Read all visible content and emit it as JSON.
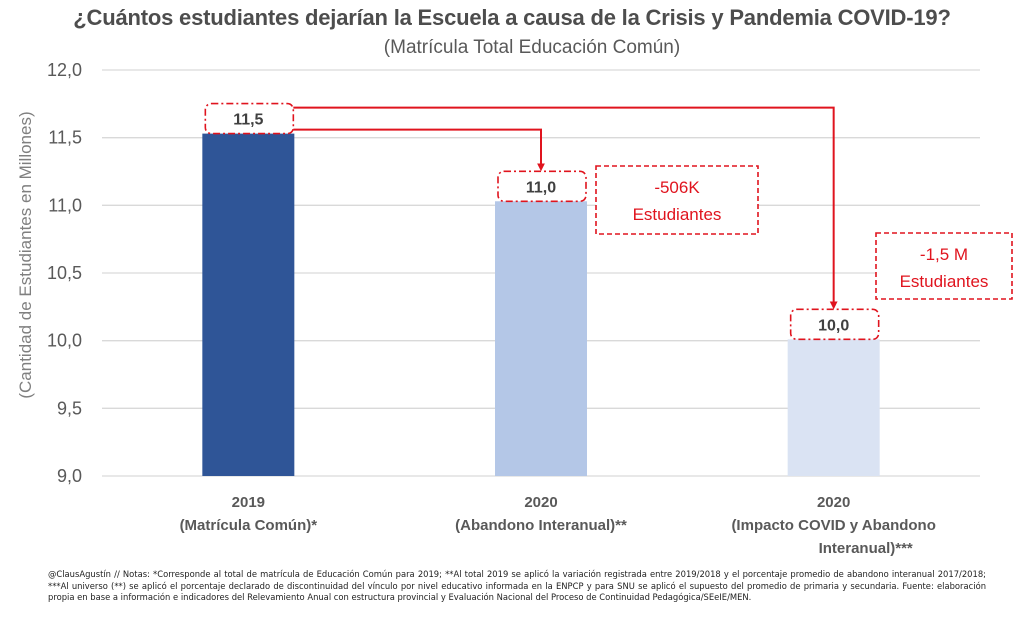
{
  "chart_data": {
    "type": "bar",
    "title": "¿Cuántos estudiantes dejarían la Escuela a causa de la Crisis y Pandemia COVID-19?",
    "subtitle": "(Matrícula Total Educación Común)",
    "ylabel": "(Cantidad de Estudiantes en Millones)",
    "xlabel": "",
    "ylim": [
      9.0,
      12.0
    ],
    "yticks": [
      9.0,
      9.5,
      10.0,
      10.5,
      11.0,
      11.5,
      12.0
    ],
    "ytick_labels": [
      "9,0",
      "9,5",
      "10,0",
      "10,5",
      "11,0",
      "11,5",
      "12,0"
    ],
    "grid": true,
    "categories": [
      {
        "line1": "2019",
        "line2": "(Matrícula Común)*",
        "line3": ""
      },
      {
        "line1": "2020",
        "line2": "(Abandono Interanual)**",
        "line3": ""
      },
      {
        "line1": "2020",
        "line2": "(Impacto COVID y Abandono",
        "line3": "Interanual)***"
      }
    ],
    "values": [
      11.53,
      11.03,
      10.01
    ],
    "data_labels": [
      "11,5",
      "11,0",
      "10,0"
    ],
    "bar_colors": [
      "#2f5597",
      "#b4c7e7",
      "#dae3f3"
    ],
    "annotations": [
      {
        "line1": "-506K",
        "line2": "Estudiantes",
        "from": 0,
        "to": 1
      },
      {
        "line1": "-1,5 M",
        "line2": "Estudiantes",
        "from": 0,
        "to": 2
      }
    ],
    "accent_color": "#e0141e"
  },
  "footnote": "@ClausAgustín // Notas: *Corresponde al total de matrícula de Educación Común para 2019; **Al total 2019 se aplicó la variación registrada entre 2019/2018 y el porcentaje promedio de abandono interanual 2017/2018; ***Al universo (**) se aplicó el porcentaje declarado de discontinuidad del vínculo por nivel educativo informada en la ENPCP y para SNU se aplicó el supuesto del promedio de primaria y secundaria. Fuente: elaboración propia en base a información e indicadores del Relevamiento Anual con estructura provincial y Evaluación Nacional del Proceso de Continuidad Pedagógica/SEeIE/MEN."
}
